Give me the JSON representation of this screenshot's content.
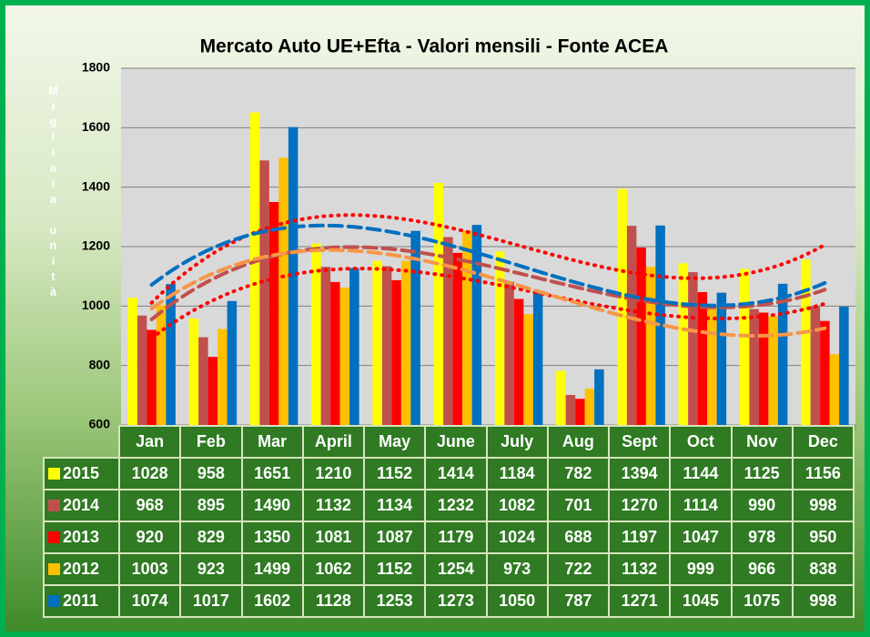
{
  "chart_data": {
    "type": "bar",
    "title": "Mercato Auto UE+Efta - Valori mensili - Fonte ACEA",
    "y_axis_label": "Migliaia unità",
    "categories": [
      "Jan",
      "Feb",
      "Mar",
      "April",
      "May",
      "June",
      "July",
      "Aug",
      "Sept",
      "Oct",
      "Nov",
      "Dec"
    ],
    "series": [
      {
        "name": "2015",
        "color": "#ffff00",
        "values": [
          1028,
          958,
          1651,
          1210,
          1152,
          1414,
          1184,
          782,
          1394,
          1144,
          1125,
          1156
        ],
        "trendline": {
          "style": "dotted",
          "color": "#ff0000"
        }
      },
      {
        "name": "2014",
        "color": "#c0504d",
        "values": [
          968,
          895,
          1490,
          1132,
          1134,
          1232,
          1082,
          701,
          1270,
          1114,
          990,
          998
        ],
        "trendline": {
          "style": "dashed",
          "color": "#c0504d"
        }
      },
      {
        "name": "2013",
        "color": "#ff0000",
        "values": [
          920,
          829,
          1350,
          1081,
          1087,
          1179,
          1024,
          688,
          1197,
          1047,
          978,
          950
        ],
        "trendline": {
          "style": "dotted",
          "color": "#ff0000"
        }
      },
      {
        "name": "2012",
        "color": "#ffc000",
        "values": [
          1003,
          923,
          1499,
          1062,
          1152,
          1254,
          973,
          722,
          1132,
          999,
          966,
          838
        ],
        "trendline": {
          "style": "dashed",
          "color": "#f79646"
        }
      },
      {
        "name": "2011",
        "color": "#0070c0",
        "values": [
          1074,
          1017,
          1602,
          1128,
          1253,
          1273,
          1050,
          787,
          1271,
          1045,
          1075,
          998
        ],
        "trendline": {
          "style": "dashed",
          "color": "#0070c0"
        }
      }
    ],
    "ylim": [
      600,
      1800
    ],
    "yticks": [
      600,
      800,
      1000,
      1200,
      1400,
      1600,
      1800
    ],
    "grid": true,
    "data_table": true
  }
}
